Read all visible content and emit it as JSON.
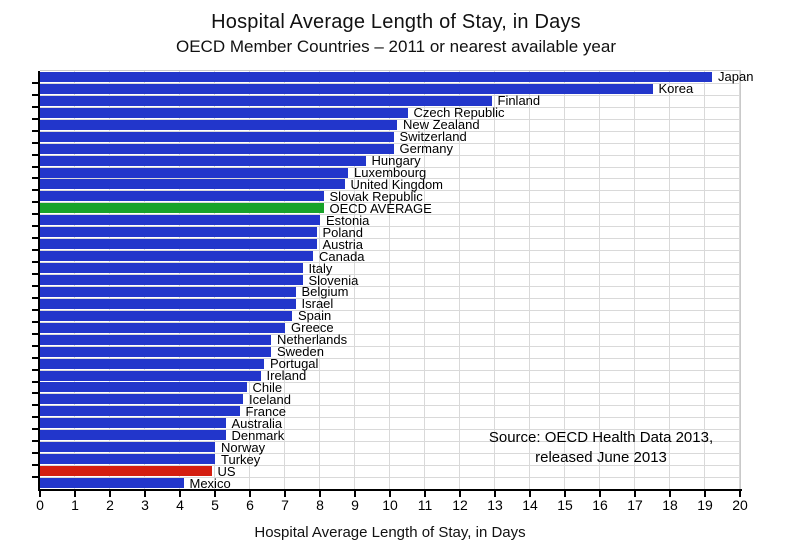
{
  "header": {
    "title": "Hospital Average Length of Stay, in Days",
    "subtitle": "OECD Member Countries – 2011 or nearest available year"
  },
  "source_note": {
    "line1": "Source:  OECD Health Data 2013,",
    "line2": "released June 2013"
  },
  "chart_data": {
    "type": "bar",
    "orientation": "horizontal",
    "title": "Hospital Average Length of Stay, in Days",
    "subtitle": "OECD Member Countries – 2011 or nearest available year",
    "xlabel": "Hospital Average Length of Stay, in Days",
    "xlim": [
      0,
      20
    ],
    "xticks": [
      0,
      1,
      2,
      3,
      4,
      5,
      6,
      7,
      8,
      9,
      10,
      11,
      12,
      13,
      14,
      15,
      16,
      17,
      18,
      19,
      20
    ],
    "grid": true,
    "legend": "none",
    "sort": "descending",
    "categories": [
      "Japan",
      "Korea",
      "Finland",
      "Czech Republic",
      "New Zealand",
      "Switzerland",
      "Germany",
      "Hungary",
      "Luxembourg",
      "United Kingdom",
      "Slovak Republic",
      "OECD AVERAGE",
      "Estonia",
      "Poland",
      "Austria",
      "Canada",
      "Italy",
      "Slovenia",
      "Belgium",
      "Israel",
      "Spain",
      "Greece",
      "Netherlands",
      "Sweden",
      "Portugal",
      "Ireland",
      "Chile",
      "Iceland",
      "France",
      "Australia",
      "Denmark",
      "Norway",
      "Turkey",
      "US",
      "Mexico"
    ],
    "values": [
      19.2,
      17.5,
      12.9,
      10.5,
      10.2,
      10.1,
      10.1,
      9.3,
      8.8,
      8.7,
      8.1,
      8.1,
      8.0,
      7.9,
      7.9,
      7.8,
      7.5,
      7.5,
      7.3,
      7.3,
      7.2,
      7.0,
      6.6,
      6.6,
      6.4,
      6.3,
      5.9,
      5.8,
      5.7,
      5.3,
      5.3,
      5.0,
      5.0,
      4.9,
      4.1
    ],
    "highlight_bars": [
      {
        "category": "OECD AVERAGE",
        "color_key": "green"
      },
      {
        "category": "US",
        "color_key": "red"
      }
    ],
    "colors": {
      "bar_default": "#2236cb",
      "green": "#18a32a",
      "red": "#d41e10",
      "gridline": "#d9d9d9",
      "axis": "#000000"
    }
  }
}
